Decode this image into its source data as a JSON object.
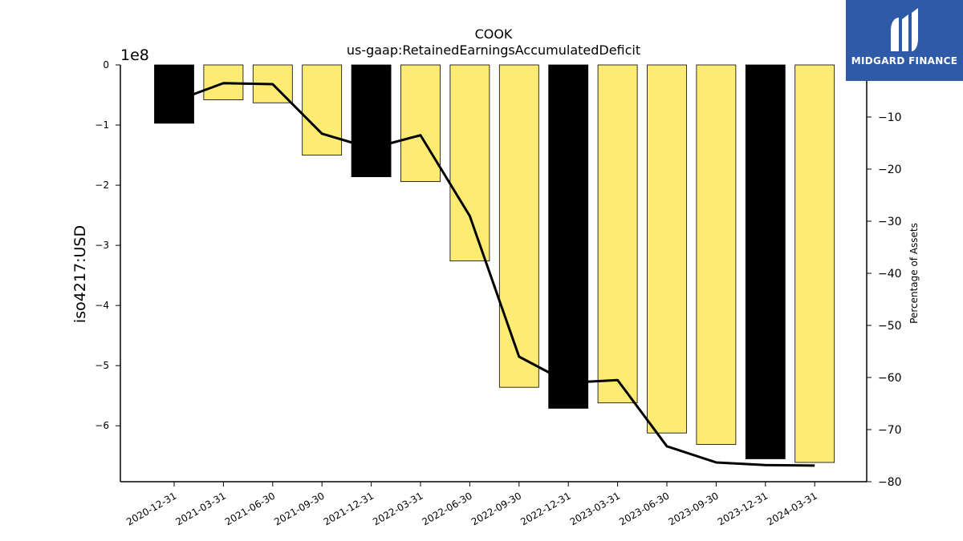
{
  "chart_data": {
    "type": "bar",
    "title": "COOK",
    "subtitle": "us-gaap:RetainedEarningsAccumulatedDeficit",
    "ylabel": "iso4217:USD",
    "y2label": "Percentage of Assets",
    "offset_label": "1e8",
    "categories": [
      "2020-12-31",
      "2021-03-31",
      "2021-06-30",
      "2021-09-30",
      "2021-12-31",
      "2022-03-31",
      "2022-06-30",
      "2022-09-30",
      "2022-12-31",
      "2023-03-31",
      "2023-06-30",
      "2023-09-30",
      "2023-12-31",
      "2024-03-31"
    ],
    "series": [
      {
        "type": "bar",
        "values": [
          -0.97,
          -0.58,
          -0.63,
          -1.5,
          -1.86,
          -1.94,
          -3.26,
          -5.36,
          -5.71,
          -5.62,
          -6.12,
          -6.31,
          -6.55,
          -6.61
        ],
        "unit_scale": 100000000,
        "colors": [
          "#000000",
          "#fdeb73",
          "#fdeb73",
          "#fdeb73",
          "#000000",
          "#fdeb73",
          "#fdeb73",
          "#fdeb73",
          "#000000",
          "#fdeb73",
          "#fdeb73",
          "#fdeb73",
          "#000000",
          "#fdeb73"
        ]
      },
      {
        "type": "line",
        "axis": "right",
        "values": [
          -7.0,
          -3.5,
          -3.7,
          -13.2,
          -16.0,
          -13.5,
          -29.0,
          -56.0,
          -61.0,
          -60.5,
          -73.2,
          -76.3,
          -76.8,
          -76.9
        ]
      }
    ],
    "y_ticks": [
      0,
      -1,
      -2,
      -3,
      -4,
      -5,
      -6
    ],
    "y_tick_labels": [
      "0",
      "−1",
      "−2",
      "−3",
      "−4",
      "−5",
      "−6"
    ],
    "ylim": [
      -6.93,
      0
    ],
    "y2_ticks": [
      -10,
      -20,
      -30,
      -40,
      -50,
      -60,
      -70,
      -80
    ],
    "y2_tick_labels": [
      "−10",
      "−20",
      "−30",
      "−40",
      "−50",
      "−60",
      "−70",
      "−80"
    ],
    "y2lim": [
      -80,
      0
    ],
    "grid": false,
    "colors": {
      "bar_highlight": "#000000",
      "bar_default": "#fdeb73",
      "line": "#000000"
    }
  },
  "logo": {
    "text": "MIDGARD FINANCE",
    "color": "#2f5aa8"
  }
}
